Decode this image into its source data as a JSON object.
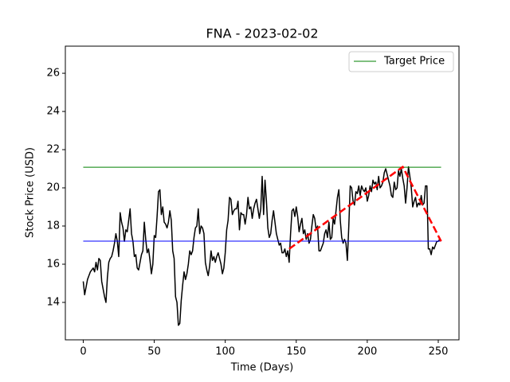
{
  "chart_data": {
    "type": "line",
    "title": "FNA - 2023-02-02",
    "x_label": "Time (Days)",
    "y_label": "Stock Price (USD)",
    "x": [
      0,
      1,
      2,
      3,
      4,
      5,
      6,
      7,
      8,
      9,
      10,
      11,
      12,
      13,
      14,
      15,
      16,
      17,
      18,
      19,
      20,
      21,
      22,
      23,
      24,
      25,
      26,
      27,
      28,
      29,
      30,
      31,
      32,
      33,
      34,
      35,
      36,
      37,
      38,
      39,
      40,
      41,
      42,
      43,
      44,
      45,
      46,
      47,
      48,
      49,
      50,
      51,
      52,
      53,
      54,
      55,
      56,
      57,
      58,
      59,
      60,
      61,
      62,
      63,
      64,
      65,
      66,
      67,
      68,
      69,
      70,
      71,
      72,
      73,
      74,
      75,
      76,
      77,
      78,
      79,
      80,
      81,
      82,
      83,
      84,
      85,
      86,
      87,
      88,
      89,
      90,
      91,
      92,
      93,
      94,
      95,
      96,
      97,
      98,
      99,
      100,
      101,
      102,
      103,
      104,
      105,
      106,
      107,
      108,
      109,
      110,
      111,
      112,
      113,
      114,
      115,
      116,
      117,
      118,
      119,
      120,
      121,
      122,
      123,
      124,
      125,
      126,
      127,
      128,
      129,
      130,
      131,
      132,
      133,
      134,
      135,
      136,
      137,
      138,
      139,
      140,
      141,
      142,
      143,
      144,
      145,
      146,
      147,
      148,
      149,
      150,
      151,
      152,
      153,
      154,
      155,
      156,
      157,
      158,
      159,
      160,
      161,
      162,
      163,
      164,
      165,
      166,
      167,
      168,
      169,
      170,
      171,
      172,
      173,
      174,
      175,
      176,
      177,
      178,
      179,
      180,
      181,
      182,
      183,
      184,
      185,
      186,
      187,
      188,
      189,
      190,
      191,
      192,
      193,
      194,
      195,
      196,
      197,
      198,
      199,
      200,
      201,
      202,
      203,
      204,
      205,
      206,
      207,
      208,
      209,
      210,
      211,
      212,
      213,
      214,
      215,
      216,
      217,
      218,
      219,
      220,
      221,
      222,
      223,
      224,
      225,
      226,
      227,
      228,
      229,
      230,
      231,
      232,
      233,
      234,
      235,
      236,
      237,
      238,
      239,
      240,
      241,
      242,
      243,
      244,
      245,
      246,
      247,
      248,
      249,
      250,
      251
    ],
    "series": [
      {
        "color": "#000000",
        "values": [
          15.1,
          14.4,
          14.8,
          15.2,
          15.4,
          15.6,
          15.7,
          15.8,
          15.6,
          16.1,
          15.7,
          16.3,
          16.2,
          15.1,
          14.7,
          14.3,
          14.0,
          15.3,
          16.1,
          16.3,
          16.4,
          16.7,
          17.1,
          17.6,
          17.2,
          16.4,
          18.7,
          18.2,
          17.9,
          17.2,
          17.8,
          17.7,
          18.3,
          18.9,
          17.6,
          17.2,
          16.4,
          16.5,
          15.8,
          15.7,
          16.1,
          16.5,
          16.7,
          18.2,
          17.3,
          16.6,
          16.8,
          16.2,
          15.5,
          16.0,
          17.5,
          17.4,
          18.5,
          19.8,
          19.9,
          18.6,
          19.0,
          18.2,
          18.1,
          17.9,
          18.2,
          18.8,
          18.3,
          16.7,
          16.3,
          14.3,
          14.0,
          12.8,
          12.9,
          14.1,
          14.9,
          15.6,
          15.2,
          15.5,
          16.0,
          16.7,
          16.5,
          16.7,
          17.4,
          17.9,
          18.0,
          18.9,
          17.6,
          18.0,
          17.9,
          17.6,
          16.1,
          15.7,
          15.4,
          15.9,
          16.7,
          16.2,
          16.4,
          16.1,
          16.4,
          16.6,
          16.3,
          16.0,
          15.5,
          15.8,
          16.6,
          17.8,
          18.3,
          19.5,
          19.4,
          18.6,
          18.8,
          18.9,
          18.9,
          19.3,
          17.8,
          18.7,
          18.6,
          18.6,
          18.1,
          18.6,
          19.5,
          18.9,
          19.0,
          18.4,
          18.9,
          19.2,
          19.4,
          18.9,
          18.4,
          18.9,
          20.6,
          18.6,
          20.4,
          19.3,
          17.9,
          17.4,
          17.6,
          18.3,
          18.8,
          18.2,
          17.6,
          17.3,
          17.0,
          17.1,
          16.6,
          16.6,
          16.8,
          16.4,
          16.7,
          16.1,
          17.6,
          18.8,
          18.9,
          18.5,
          19.0,
          18.5,
          17.7,
          18.1,
          18.4,
          17.6,
          17.8,
          17.3,
          17.6,
          17.1,
          17.3,
          18.0,
          18.6,
          18.4,
          17.8,
          18.0,
          16.7,
          16.7,
          16.9,
          17.1,
          17.6,
          17.8,
          17.4,
          18.2,
          17.3,
          17.4,
          18.4,
          18.1,
          18.8,
          19.5,
          19.9,
          18.3,
          17.4,
          17.1,
          17.3,
          17.1,
          16.2,
          18.0,
          20.1,
          20.0,
          19.3,
          19.1,
          19.8,
          19.7,
          20.1,
          19.6,
          20.1,
          19.9,
          19.8,
          20.0,
          19.3,
          19.6,
          20.1,
          19.8,
          20.4,
          20.2,
          20.3,
          19.9,
          20.6,
          20.0,
          20.1,
          20.3,
          20.8,
          21.0,
          20.7,
          20.4,
          20.1,
          19.6,
          19.5,
          20.3,
          19.9,
          20.0,
          20.9,
          20.6,
          21.0,
          20.5,
          20.1,
          19.2,
          20.0,
          21.1,
          20.6,
          20.0,
          19.0,
          19.3,
          19.5,
          19.0,
          19.2,
          19.1,
          19.6,
          19.1,
          19.2,
          20.1,
          20.1,
          16.8,
          16.8,
          16.5,
          16.9,
          16.8,
          17.0,
          17.2,
          17.2,
          17.3
        ]
      },
      {
        "name": "Target Price",
        "color": "#008000",
        "x": [
          0,
          252
        ],
        "values": [
          21.08,
          21.08
        ]
      },
      {
        "color": "#0000ff",
        "x": [
          0,
          252
        ],
        "values": [
          17.21,
          17.21
        ]
      },
      {
        "color": "#ff0000",
        "dashed": true,
        "x": [
          145,
          225,
          252
        ],
        "values": [
          16.8,
          21.1,
          17.2
        ]
      }
    ],
    "xlim": [
      -12.6,
      264.6
    ],
    "ylim": [
      12.04,
      27.42
    ],
    "xticks": [
      0,
      50,
      100,
      150,
      200,
      250
    ],
    "yticks": [
      14,
      16,
      18,
      20,
      22,
      24,
      26
    ],
    "legend": "upper right"
  }
}
